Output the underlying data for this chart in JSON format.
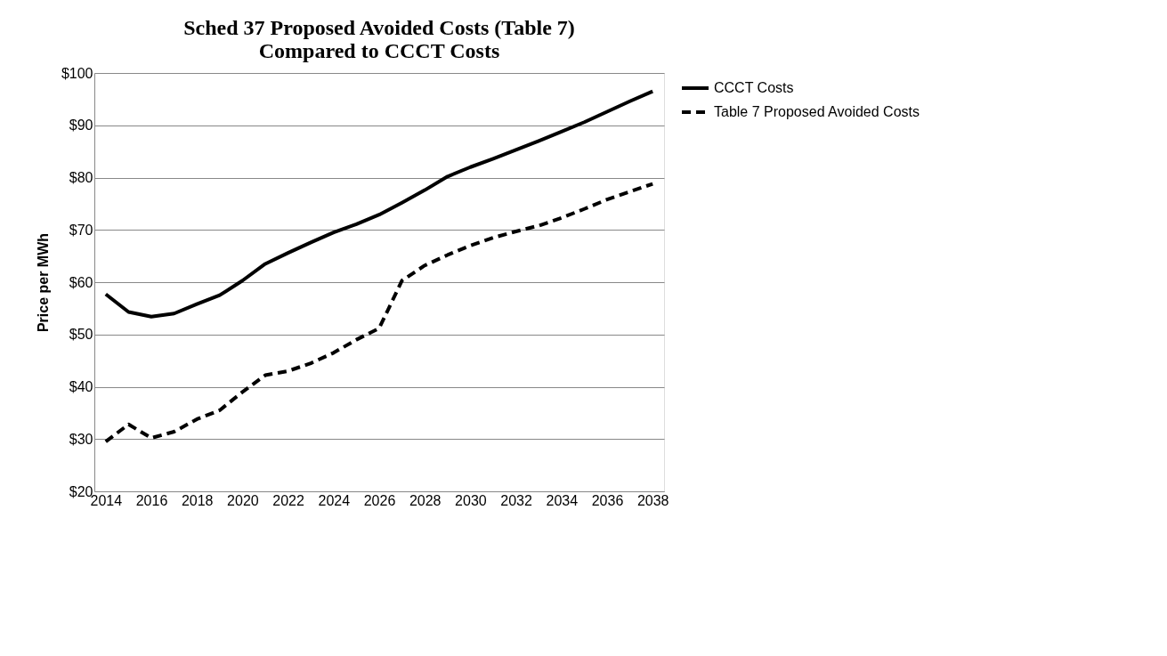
{
  "chart_data": {
    "type": "line",
    "title": "Sched 37 Proposed Avoided Costs (Table 7)\nCompared to CCCT Costs",
    "ylabel": "Price per MWh",
    "categories": [
      "2014",
      null,
      "2016",
      null,
      "2018",
      null,
      "2020",
      null,
      "2022",
      null,
      "2024",
      null,
      "2026",
      null,
      "2028",
      null,
      "2030",
      null,
      "2032",
      null,
      "2034",
      null,
      "2036",
      null,
      "2038"
    ],
    "series": [
      {
        "name": "CCCT Costs",
        "color": "#000000",
        "line_style": "solid",
        "values": [
          57.7,
          54.3,
          53.4,
          54.0,
          55.8,
          57.5,
          60.3,
          63.5,
          65.6,
          67.6,
          69.5,
          71.1,
          72.9,
          75.2,
          77.6,
          80.2,
          82.0,
          83.6,
          85.3,
          87.0,
          88.8,
          90.6,
          92.6,
          94.6,
          96.5
        ]
      },
      {
        "name": "Table 7 Proposed Avoided Costs",
        "color": "#000000",
        "line_style": "dashed",
        "values": [
          29.5,
          32.8,
          30.2,
          31.4,
          33.8,
          35.5,
          39.0,
          42.2,
          43.0,
          44.5,
          46.5,
          49.0,
          51.2,
          60.3,
          63.2,
          65.2,
          67.0,
          68.5,
          69.7,
          70.8,
          72.3,
          74.0,
          75.8,
          77.3,
          78.8
        ]
      }
    ],
    "ylim": [
      20,
      100
    ],
    "yticks": [
      {
        "value": 20,
        "label": "$20"
      },
      {
        "value": 30,
        "label": "$30"
      },
      {
        "value": 40,
        "label": "$40"
      },
      {
        "value": 50,
        "label": "$50"
      },
      {
        "value": 60,
        "label": "$60"
      },
      {
        "value": 70,
        "label": "$70"
      },
      {
        "value": 80,
        "label": "$80"
      },
      {
        "value": 90,
        "label": "$90"
      },
      {
        "value": 100,
        "label": "$100"
      }
    ],
    "grid": "y",
    "legend": "right",
    "marker": "none"
  }
}
